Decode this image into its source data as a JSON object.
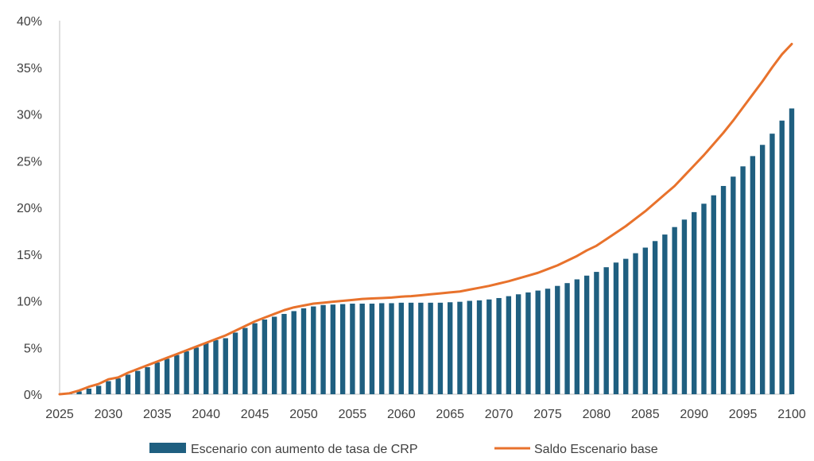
{
  "chart_data": {
    "type": "bar",
    "title": "",
    "xlabel": "",
    "ylabel": "",
    "x_range": [
      2025,
      2100
    ],
    "ylim": [
      0,
      40
    ],
    "y_ticks": [
      0,
      5,
      10,
      15,
      20,
      25,
      30,
      35,
      40
    ],
    "y_tick_labels": [
      "0%",
      "5%",
      "10%",
      "15%",
      "20%",
      "25%",
      "30%",
      "35%",
      "40%"
    ],
    "x_ticks": [
      2025,
      2030,
      2035,
      2040,
      2045,
      2050,
      2055,
      2060,
      2065,
      2070,
      2075,
      2080,
      2085,
      2090,
      2095,
      2100
    ],
    "x_tick_labels": [
      "2025",
      "2030",
      "2035",
      "2040",
      "2045",
      "2050",
      "2055",
      "2060",
      "2065",
      "2070",
      "2075",
      "2080",
      "2085",
      "2090",
      "2095",
      "2100"
    ],
    "grid": false,
    "legend_position": "bottom",
    "series": [
      {
        "name": "Escenario con aumento de tasa de CRP",
        "type": "bar",
        "color": "#1f5f80",
        "x": [
          2025,
          2026,
          2027,
          2028,
          2029,
          2030,
          2031,
          2032,
          2033,
          2034,
          2035,
          2036,
          2037,
          2038,
          2039,
          2040,
          2041,
          2042,
          2043,
          2044,
          2045,
          2046,
          2047,
          2048,
          2049,
          2050,
          2051,
          2052,
          2053,
          2054,
          2055,
          2056,
          2057,
          2058,
          2059,
          2060,
          2061,
          2062,
          2063,
          2064,
          2065,
          2066,
          2067,
          2068,
          2069,
          2070,
          2071,
          2072,
          2073,
          2074,
          2075,
          2076,
          2077,
          2078,
          2079,
          2080,
          2081,
          2082,
          2083,
          2084,
          2085,
          2086,
          2087,
          2088,
          2089,
          2090,
          2091,
          2092,
          2093,
          2094,
          2095,
          2096,
          2097,
          2098,
          2099,
          2100
        ],
        "values": [
          0.0,
          0.1,
          0.3,
          0.6,
          0.9,
          1.4,
          1.7,
          2.1,
          2.5,
          2.9,
          3.4,
          3.8,
          4.2,
          4.6,
          5.0,
          5.5,
          5.8,
          6.0,
          6.6,
          7.1,
          7.6,
          8.0,
          8.3,
          8.6,
          8.9,
          9.2,
          9.4,
          9.55,
          9.6,
          9.65,
          9.7,
          9.7,
          9.7,
          9.75,
          9.75,
          9.8,
          9.8,
          9.8,
          9.8,
          9.8,
          9.85,
          9.9,
          10.0,
          10.05,
          10.15,
          10.3,
          10.5,
          10.7,
          10.9,
          11.1,
          11.3,
          11.6,
          11.9,
          12.3,
          12.7,
          13.1,
          13.6,
          14.1,
          14.5,
          15.1,
          15.7,
          16.4,
          17.1,
          17.9,
          18.7,
          19.5,
          20.4,
          21.3,
          22.3,
          23.3,
          24.4,
          25.5,
          26.7,
          27.9,
          29.3,
          30.6
        ]
      },
      {
        "name": "Saldo Escenario base",
        "type": "line",
        "color": "#e8722c",
        "x": [
          2025,
          2026,
          2027,
          2028,
          2029,
          2030,
          2031,
          2032,
          2033,
          2034,
          2035,
          2036,
          2037,
          2038,
          2039,
          2040,
          2041,
          2042,
          2043,
          2044,
          2045,
          2046,
          2047,
          2048,
          2049,
          2050,
          2051,
          2052,
          2053,
          2054,
          2055,
          2056,
          2057,
          2058,
          2059,
          2060,
          2061,
          2062,
          2063,
          2064,
          2065,
          2066,
          2067,
          2068,
          2069,
          2070,
          2071,
          2072,
          2073,
          2074,
          2075,
          2076,
          2077,
          2078,
          2079,
          2080,
          2081,
          2082,
          2083,
          2084,
          2085,
          2086,
          2087,
          2088,
          2089,
          2090,
          2091,
          2092,
          2093,
          2094,
          2095,
          2096,
          2097,
          2098,
          2099,
          2100
        ],
        "values": [
          0.0,
          0.1,
          0.4,
          0.8,
          1.1,
          1.6,
          1.8,
          2.3,
          2.7,
          3.1,
          3.5,
          3.9,
          4.3,
          4.7,
          5.1,
          5.5,
          5.9,
          6.3,
          6.8,
          7.3,
          7.8,
          8.2,
          8.6,
          9.0,
          9.3,
          9.5,
          9.7,
          9.8,
          9.9,
          10.0,
          10.1,
          10.2,
          10.25,
          10.3,
          10.35,
          10.45,
          10.5,
          10.6,
          10.7,
          10.8,
          10.9,
          11.0,
          11.2,
          11.4,
          11.6,
          11.85,
          12.1,
          12.4,
          12.7,
          13.0,
          13.4,
          13.8,
          14.3,
          14.8,
          15.4,
          15.9,
          16.6,
          17.3,
          18.0,
          18.8,
          19.6,
          20.5,
          21.4,
          22.3,
          23.4,
          24.5,
          25.6,
          26.8,
          28.0,
          29.3,
          30.7,
          32.1,
          33.5,
          35.0,
          36.4,
          37.5
        ]
      }
    ]
  }
}
